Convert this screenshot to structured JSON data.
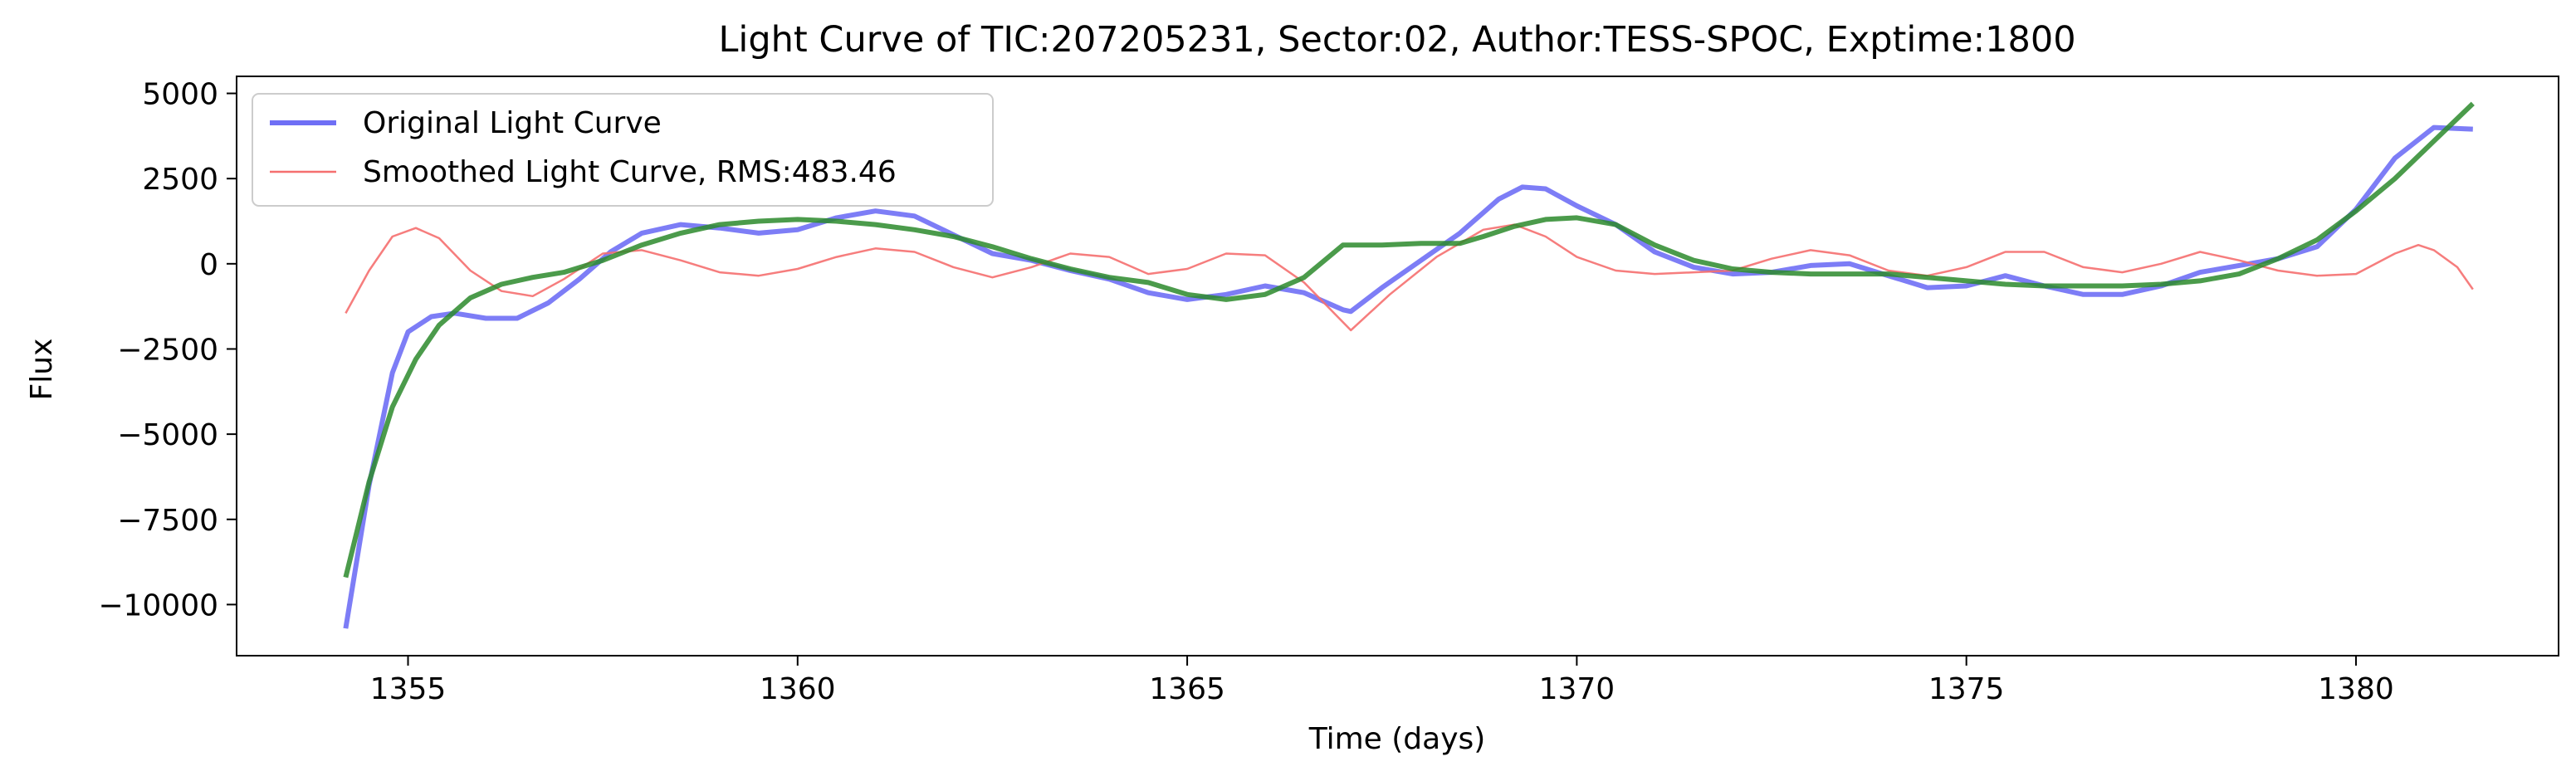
{
  "chart_data": {
    "type": "line",
    "title": "Light Curve of TIC:207205231, Sector:02, Author:TESS-SPOC, Exptime:1800",
    "xlabel": "Time (days)",
    "ylabel": "Flux",
    "xlim": [
      1352.8,
      1382.6
    ],
    "ylim": [
      -11500,
      5500
    ],
    "xticks": [
      1355,
      1360,
      1365,
      1370,
      1375,
      1380
    ],
    "xtick_labels": [
      "1355",
      "1360",
      "1365",
      "1370",
      "1375",
      "1380"
    ],
    "yticks": [
      5000,
      2500,
      0,
      -2500,
      -5000,
      -7500,
      -10000
    ],
    "ytick_labels": [
      "5000",
      "2500",
      "0",
      "−2500",
      "−5000",
      "−7500",
      "−10000"
    ],
    "grid": false,
    "legend_position": "upper-left",
    "series": [
      {
        "name": "Original Light Curve",
        "color": "#6f6ff5",
        "x": [
          1354.2,
          1354.5,
          1354.8,
          1355.0,
          1355.3,
          1355.6,
          1356.0,
          1356.4,
          1356.8,
          1357.2,
          1357.6,
          1358.0,
          1358.5,
          1359.0,
          1359.5,
          1360.0,
          1360.5,
          1361.0,
          1361.5,
          1362.0,
          1362.5,
          1363.0,
          1363.5,
          1364.0,
          1364.5,
          1365.0,
          1365.5,
          1366.0,
          1366.5,
          1367.0,
          1367.1,
          1367.5,
          1368.0,
          1368.5,
          1369.0,
          1369.3,
          1369.6,
          1370.0,
          1370.5,
          1371.0,
          1371.5,
          1372.0,
          1372.5,
          1373.0,
          1373.5,
          1374.0,
          1374.5,
          1375.0,
          1375.5,
          1376.0,
          1376.5,
          1377.0,
          1377.5,
          1378.0,
          1378.5,
          1379.0,
          1379.5,
          1380.0,
          1380.5,
          1381.0,
          1381.5
        ],
        "y": [
          -10700,
          -6500,
          -3200,
          -2000,
          -1550,
          -1450,
          -1600,
          -1600,
          -1150,
          -450,
          350,
          900,
          1150,
          1050,
          900,
          1000,
          1350,
          1550,
          1400,
          850,
          300,
          100,
          -200,
          -450,
          -850,
          -1050,
          -900,
          -650,
          -850,
          -1350,
          -1400,
          -700,
          100,
          900,
          1900,
          2250,
          2200,
          1700,
          1150,
          350,
          -100,
          -300,
          -250,
          -50,
          0,
          -350,
          -700,
          -650,
          -350,
          -650,
          -900,
          -900,
          -650,
          -250,
          -50,
          150,
          500,
          1600,
          3100,
          4000,
          3950
        ]
      },
      {
        "name": "Smoothed Light Curve, RMS:483.46",
        "color": "#f56f6f",
        "x": [
          1354.2,
          1354.5,
          1354.8,
          1355.1,
          1355.4,
          1355.8,
          1356.2,
          1356.6,
          1357.0,
          1357.5,
          1358.0,
          1358.5,
          1359.0,
          1359.5,
          1360.0,
          1360.5,
          1361.0,
          1361.5,
          1362.0,
          1362.5,
          1363.0,
          1363.5,
          1364.0,
          1364.5,
          1365.0,
          1365.5,
          1366.0,
          1366.5,
          1367.1,
          1367.6,
          1368.2,
          1368.8,
          1369.2,
          1369.6,
          1370.0,
          1370.5,
          1371.0,
          1371.5,
          1372.0,
          1372.5,
          1373.0,
          1373.5,
          1374.0,
          1374.5,
          1375.0,
          1375.5,
          1376.0,
          1376.5,
          1377.0,
          1377.5,
          1378.0,
          1378.5,
          1379.0,
          1379.5,
          1380.0,
          1380.5,
          1380.8,
          1381.0,
          1381.3,
          1381.5
        ],
        "y": [
          -1450,
          -200,
          800,
          1050,
          750,
          -200,
          -800,
          -950,
          -450,
          300,
          400,
          100,
          -250,
          -350,
          -150,
          200,
          450,
          350,
          -100,
          -400,
          -100,
          300,
          200,
          -300,
          -150,
          300,
          250,
          -550,
          -1950,
          -900,
          200,
          1000,
          1150,
          800,
          200,
          -200,
          -300,
          -250,
          -200,
          150,
          400,
          250,
          -200,
          -350,
          -100,
          350,
          350,
          -100,
          -250,
          0,
          350,
          100,
          -200,
          -350,
          -300,
          300,
          550,
          400,
          -100,
          -750
        ]
      },
      {
        "name": "",
        "color": "#2b8a2b",
        "x": [
          1354.2,
          1354.5,
          1354.8,
          1355.1,
          1355.4,
          1355.8,
          1356.2,
          1356.6,
          1357.0,
          1357.5,
          1358.0,
          1358.5,
          1359.0,
          1359.5,
          1360.0,
          1360.5,
          1361.0,
          1361.5,
          1362.0,
          1362.5,
          1363.0,
          1363.5,
          1364.0,
          1364.5,
          1365.0,
          1365.5,
          1366.0,
          1366.5,
          1367.0,
          1367.5,
          1368.0,
          1368.5,
          1368.8,
          1369.2,
          1369.6,
          1370.0,
          1370.5,
          1371.0,
          1371.5,
          1372.0,
          1372.5,
          1373.0,
          1373.5,
          1374.0,
          1374.5,
          1375.0,
          1375.5,
          1376.0,
          1376.5,
          1377.0,
          1377.5,
          1378.0,
          1378.5,
          1379.0,
          1379.5,
          1380.0,
          1380.5,
          1381.0,
          1381.5
        ],
        "y": [
          -9200,
          -6400,
          -4200,
          -2800,
          -1800,
          -1000,
          -600,
          -400,
          -250,
          100,
          550,
          900,
          1150,
          1250,
          1300,
          1250,
          1150,
          1000,
          800,
          500,
          150,
          -150,
          -400,
          -550,
          -900,
          -1050,
          -900,
          -400,
          550,
          550,
          600,
          600,
          800,
          1100,
          1300,
          1350,
          1150,
          550,
          100,
          -150,
          -250,
          -300,
          -300,
          -300,
          -400,
          -500,
          -600,
          -650,
          -650,
          -650,
          -600,
          -500,
          -300,
          150,
          700,
          1550,
          2500,
          3600,
          4700
        ]
      }
    ]
  }
}
